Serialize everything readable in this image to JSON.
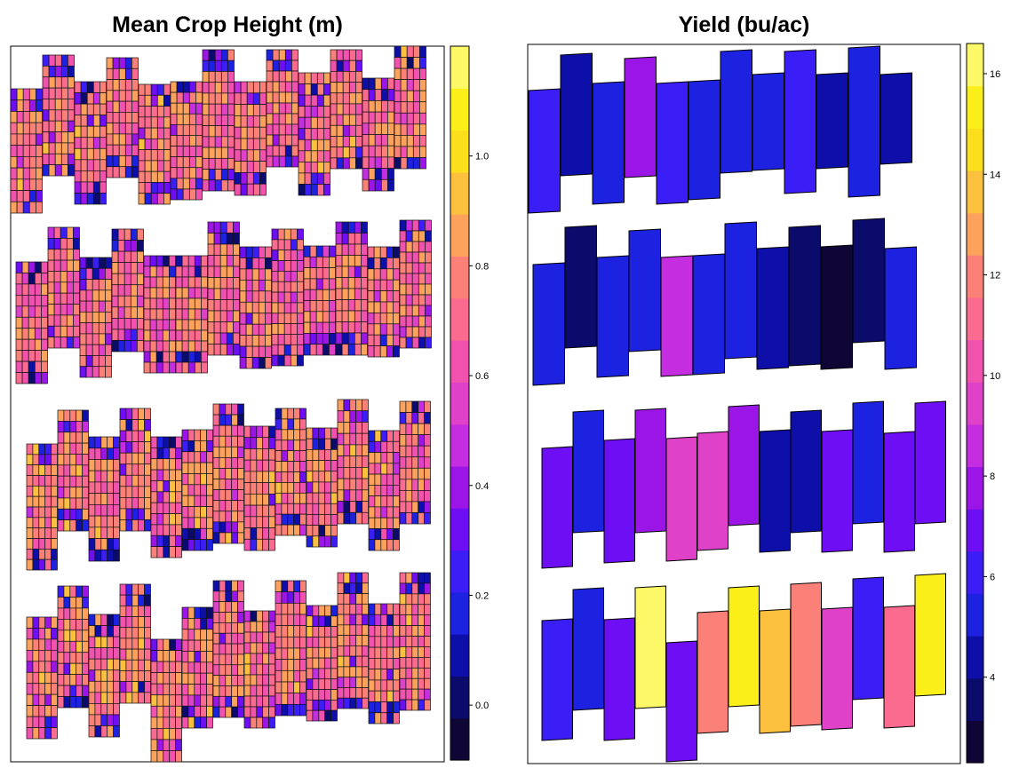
{
  "palette": [
    "#100636",
    "#0b0b6b",
    "#0e0ea9",
    "#1d22e0",
    "#3b1ef6",
    "#6d0ef4",
    "#9b16e6",
    "#c42ee0",
    "#e041c9",
    "#f052ae",
    "#fb6a8f",
    "#fb8178",
    "#fca25d",
    "#fcc03f",
    "#fbdf1d",
    "#fbef19",
    "#fcf868"
  ],
  "left_chart": {
    "title": "Mean Crop Height (m)",
    "colorbar": {
      "range": [
        -0.1,
        1.2
      ],
      "ticks": [
        "0.0",
        "0.2",
        "0.4",
        "0.6",
        "0.8",
        "1.0"
      ]
    }
  },
  "right_chart": {
    "title": "Yield (bu/ac)",
    "colorbar": {
      "range": [
        2.3,
        16.6
      ],
      "ticks": [
        "4",
        "6",
        "8",
        "10",
        "12",
        "14",
        "16"
      ]
    }
  },
  "chart_data": [
    {
      "type": "heatmap",
      "title": "Mean Crop Height (m)",
      "value_label": "Mean Crop Height (m)",
      "legend_range": [
        -0.1,
        1.2
      ],
      "legend_ticks": [
        0.0,
        0.2,
        0.4,
        0.6,
        0.8,
        1.0
      ],
      "row_typical_values": [
        0.75,
        0.72,
        0.76,
        0.76
      ],
      "note_cells": "each plot is subdivided into grid cells of height values; mostly 0.6–0.9 m with low (0.0–0.4 m) cells at plot ends"
    },
    {
      "type": "heatmap",
      "title": "Yield (bu/ac)",
      "value_label": "Yield (bu/ac)",
      "legend_range": [
        2.3,
        16.6
      ],
      "legend_ticks": [
        4,
        6,
        8,
        10,
        12,
        14,
        16
      ],
      "plot_values": [
        [
          6.0,
          4.8,
          5.5,
          7.5,
          6.3,
          5.2,
          5.5,
          5.0,
          6.1,
          4.5,
          4.9,
          4.5
        ],
        [
          5.5,
          3.4,
          5.3,
          5.0,
          8.5,
          5.5,
          5.2,
          4.0,
          3.8,
          2.5,
          3.9,
          5.0
        ],
        [
          7.2,
          5.4,
          7.1,
          7.4,
          9.4,
          9.5,
          8.0,
          4.5,
          4.3,
          7.3,
          5.2,
          7.3,
          6.8
        ],
        [
          5.8,
          5.0,
          6.7,
          16.5,
          7.3,
          12.1,
          15.5,
          13.6,
          12.3,
          9.6,
          5.8,
          11.5,
          15.3
        ]
      ]
    }
  ]
}
